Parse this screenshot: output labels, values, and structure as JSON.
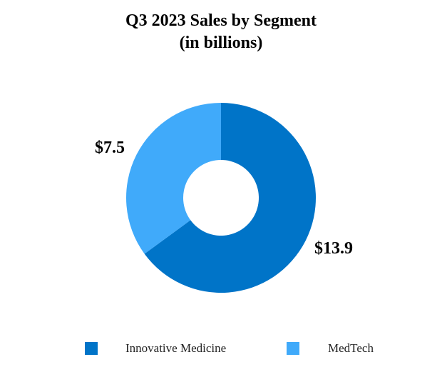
{
  "chart_data": {
    "type": "pie",
    "variant": "donut",
    "title": "Q3 2023 Sales by Segment",
    "subtitle": "(in billions)",
    "categories": [
      "Innovative Medicine",
      "MedTech"
    ],
    "values": [
      13.9,
      7.5
    ],
    "data_labels": [
      "$13.9",
      "$7.5"
    ],
    "colors": [
      "#0074C8",
      "#40AAFA"
    ],
    "legend_position": "bottom",
    "start_angle_deg": 0,
    "direction": "clockwise"
  }
}
